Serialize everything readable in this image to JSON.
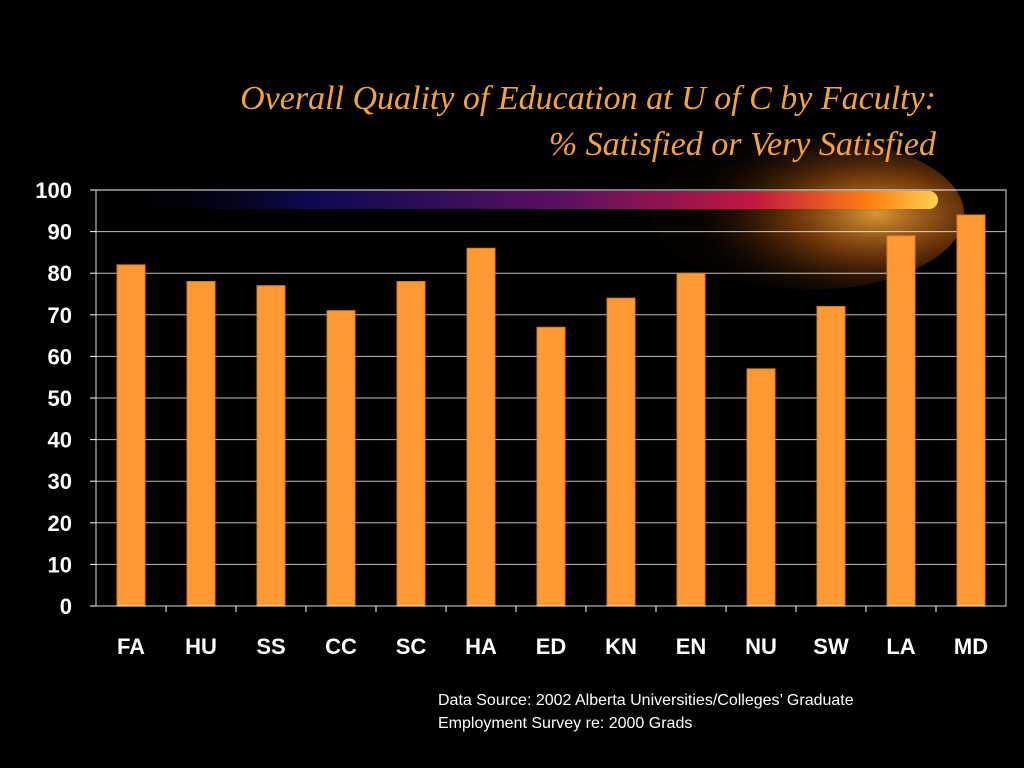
{
  "title": {
    "line1": "Overall Quality of Education at U of C by Faculty:",
    "line2": "% Satisfied or Very Satisfied"
  },
  "footnote": {
    "line1": "Data Source: 2002 Alberta Universities/Colleges’ Graduate",
    "line2": "Employment Survey re: 2000 Grads"
  },
  "colors": {
    "background": "#000000",
    "bar": "#ff9933",
    "title": "#f3a33c",
    "text": "#ffffff",
    "grid": "#ffffff"
  },
  "chart_data": {
    "type": "bar",
    "categories": [
      "FA",
      "HU",
      "SS",
      "CC",
      "SC",
      "HA",
      "ED",
      "KN",
      "EN",
      "NU",
      "SW",
      "LA",
      "MD"
    ],
    "values": [
      82,
      78,
      77,
      71,
      78,
      86,
      67,
      74,
      80,
      57,
      72,
      89,
      94
    ],
    "yticks": [
      "0",
      "10",
      "20",
      "30",
      "40",
      "50",
      "60",
      "70",
      "80",
      "90",
      "100"
    ],
    "ylim": [
      0,
      100
    ],
    "grid": true,
    "legend": "none"
  }
}
